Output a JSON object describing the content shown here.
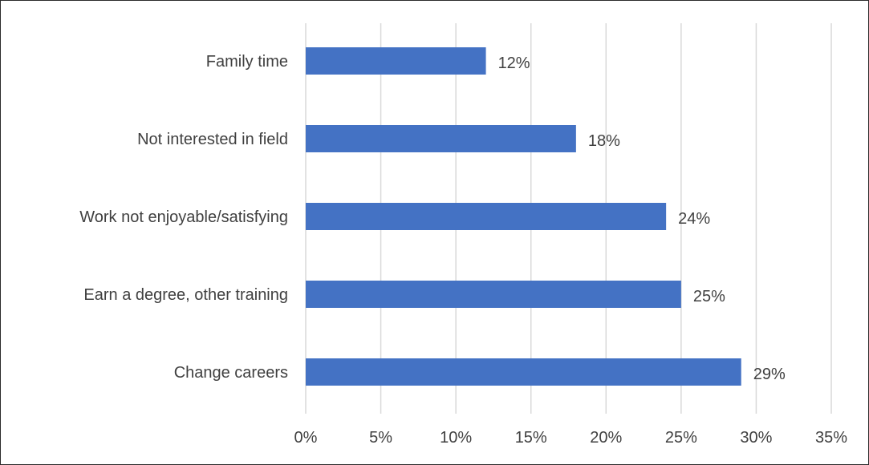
{
  "chart_data": {
    "type": "bar",
    "orientation": "horizontal",
    "categories": [
      "Family time",
      "Not interested in field",
      "Work not enjoyable/satisfying",
      "Earn a degree, other training",
      "Change careers"
    ],
    "values": [
      12,
      18,
      24,
      25,
      29
    ],
    "value_suffix": "%",
    "xlim": [
      0,
      35
    ],
    "x_ticks": [
      0,
      5,
      10,
      15,
      20,
      25,
      30,
      35
    ],
    "x_tick_labels": [
      "0%",
      "5%",
      "10%",
      "15%",
      "20%",
      "25%",
      "30%",
      "35%"
    ],
    "grid": "vertical",
    "legend": "none",
    "bar_color": "#4472C4"
  }
}
